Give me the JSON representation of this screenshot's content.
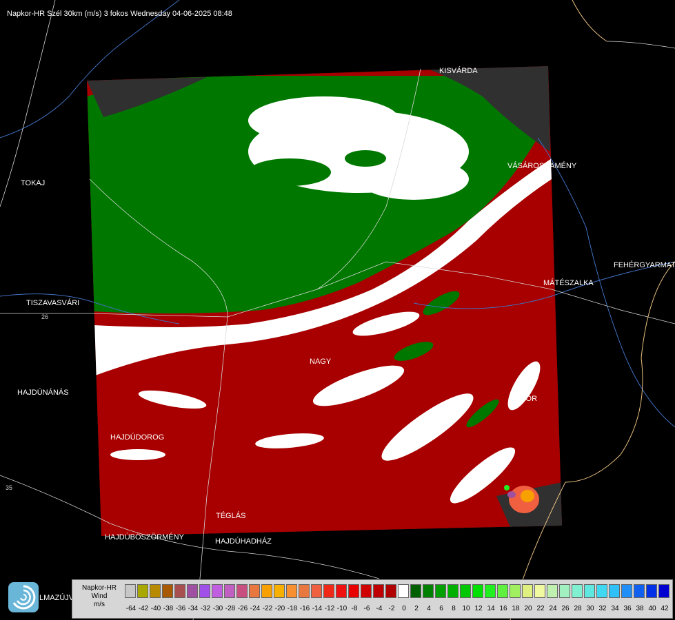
{
  "title": "Napkor-HR Szél 30km (m/s) 3 fokos Wednesday 04-06-2025 08:48",
  "cities": [
    {
      "name": "KISVÁRDA",
      "id": "kisvarda"
    },
    {
      "name": "TOKAJ",
      "id": "tokaj"
    },
    {
      "name": "VÁSÁROSNAMÉNY",
      "id": "vasarosnameny"
    },
    {
      "name": "FEHÉRGYARMAT",
      "id": "fehergyarmat"
    },
    {
      "name": "MÁTÉSZALKA",
      "id": "mateszalka"
    },
    {
      "name": "TISZAVASVÁRI",
      "id": "tiszavasvari"
    },
    {
      "name": "NAGY",
      "id": "nagykallo"
    },
    {
      "name": "HAJDÚNÁNÁS",
      "id": "hajdunanas"
    },
    {
      "name": "HAJDÚDOROG",
      "id": "hajdudorog"
    },
    {
      "name": "TÉGLÁS",
      "id": "teglas"
    },
    {
      "name": "HAJDÚBÖSZÖRMÉNY",
      "id": "hajduboszormeny"
    },
    {
      "name": "HAJDÚHADHÁZ",
      "id": "hajduhadhaz"
    },
    {
      "name": "LMAZÚJVÁR",
      "id": "balmazujvaros"
    },
    {
      "name": "TOR",
      "id": "nyirbator"
    }
  ],
  "road_numbers": [
    "26",
    "35"
  ],
  "legend": {
    "line1": "Napkor-HR",
    "line2": "Wind",
    "line3": "m/s",
    "ticks": [
      "-64",
      "-42",
      "-40",
      "-38",
      "-36",
      "-34",
      "-32",
      "-30",
      "-28",
      "-26",
      "-24",
      "-22",
      "-20",
      "-18",
      "-16",
      "-14",
      "-12",
      "-10",
      "-8",
      "-6",
      "-4",
      "-2",
      "0",
      "2",
      "4",
      "6",
      "8",
      "10",
      "12",
      "14",
      "16",
      "18",
      "20",
      "22",
      "24",
      "26",
      "28",
      "30",
      "32",
      "34",
      "36",
      "38",
      "40",
      "42"
    ],
    "colors": [
      "#c8c8c8",
      "#a8a800",
      "#b88a00",
      "#a85a00",
      "#a85050",
      "#a050a0",
      "#a050e8",
      "#c060e0",
      "#c060c0",
      "#c85080",
      "#e87840",
      "#f8a000",
      "#f8b000",
      "#f89030",
      "#e87840",
      "#f06040",
      "#f02818",
      "#f01010",
      "#e80000",
      "#d00000",
      "#c00000",
      "#b00000",
      "#ffffff",
      "#006000",
      "#008000",
      "#00a000",
      "#00b000",
      "#00c800",
      "#00e000",
      "#20f020",
      "#60f040",
      "#a0f060",
      "#e0f080",
      "#f0f8a0",
      "#c0f0b0",
      "#a0f0c0",
      "#80f0d0",
      "#60e8e0",
      "#40d8f0",
      "#30c0f8",
      "#2090f8",
      "#1060f0",
      "#0030e8",
      "#0000d0"
    ],
    "color_zero": "#ffffff"
  },
  "colors": {
    "receding": "#a80000",
    "approaching": "#007800",
    "near_zero": "#ffffff",
    "nodata": "#303030"
  }
}
